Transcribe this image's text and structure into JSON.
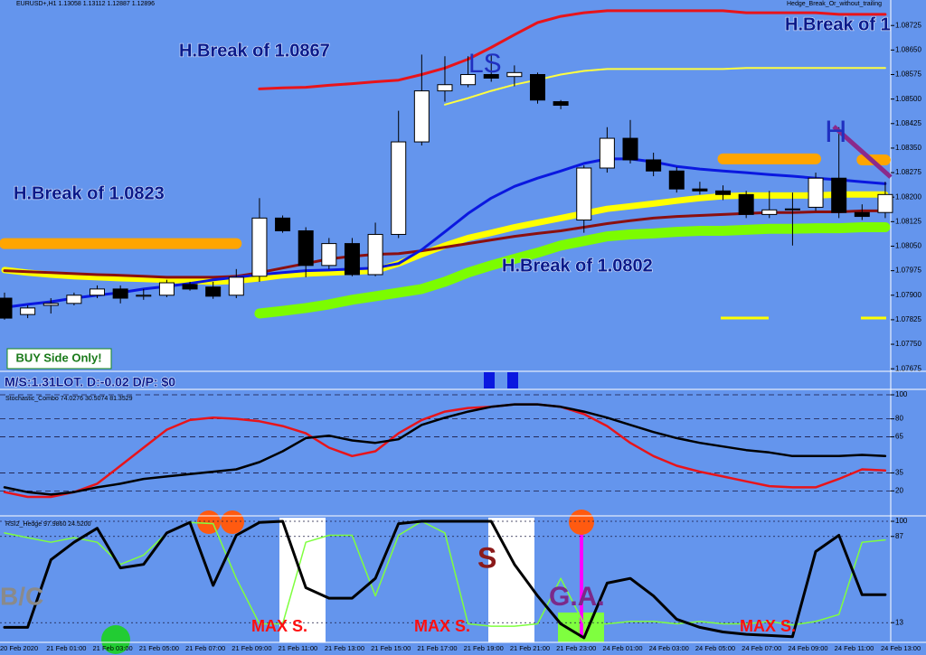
{
  "chart_data": [
    {
      "type": "candlestick",
      "title": "EURUSD+,H1  1.13058 1.13112 1.12887 1.12896",
      "indicator": "Hedge_Break_Or_without_trailing",
      "annotations": [
        "H.Break of 1.0867",
        "H.Break of 1.0823",
        "H.Break of 1.0802",
        "H.Break of 1",
        "LS",
        "H"
      ],
      "button": "BUY Side Only!",
      "status": "M/S:1.31LOT. D:-0.02 D/P: $0",
      "ylim": [
        1.0767,
        1.08803
      ],
      "yticks": [
        1.07675,
        {
          "value": 1.0775,
          "label": "1.07750"
        },
        1.07825,
        {
          "value": 1.079,
          "label": "1.07900"
        },
        1.07975,
        {
          "value": 1.0805,
          "label": "1.08050"
        },
        1.08125,
        {
          "value": 1.082,
          "label": "1.08200"
        },
        1.08275,
        {
          "value": 1.0835,
          "label": "1.08350"
        },
        1.08425,
        {
          "value": 1.085,
          "label": "1.08500"
        },
        1.08575,
        {
          "value": 1.0865,
          "label": "1.08650"
        },
        1.08725
      ],
      "up_color": "#ffffff",
      "down_color": "#000000",
      "open": [
        1.07891,
        1.07841,
        1.07869,
        1.07875,
        1.079,
        1.07919,
        1.07897,
        1.079,
        1.07933,
        1.07925,
        1.079,
        1.07958,
        1.08136,
        1.08097,
        1.07991,
        1.08058,
        1.07963,
        1.08086,
        1.08369,
        1.08525,
        1.08544,
        1.08575,
        1.08569,
        1.08575,
        1.08492,
        1.0813,
        1.08289,
        1.0838,
        1.08314,
        1.0828,
        1.08225,
        1.08219,
        1.08208,
        1.08147,
        1.08164,
        1.08169,
        1.08258,
        1.08153,
        1.08153
      ],
      "high": [
        1.07908,
        1.07869,
        1.07891,
        1.07908,
        1.0793,
        1.0793,
        1.07919,
        1.07947,
        1.07941,
        1.07941,
        1.0798,
        1.08197,
        1.08144,
        1.08108,
        1.08075,
        1.08075,
        1.08122,
        1.08464,
        1.08636,
        1.08631,
        1.08631,
        1.08636,
        1.08603,
        1.08581,
        1.08497,
        1.08297,
        1.08414,
        1.08436,
        1.08336,
        1.08292,
        1.08247,
        1.08236,
        1.08219,
        1.08219,
        1.08214,
        1.08275,
        1.08414,
        1.08178,
        1.08247
      ],
      "low": [
        1.07825,
        1.0783,
        1.07844,
        1.07869,
        1.07891,
        1.07875,
        1.07886,
        1.07894,
        1.07914,
        1.07889,
        1.07891,
        1.07941,
        1.08091,
        1.07955,
        1.0798,
        1.07958,
        1.07958,
        1.08075,
        1.08358,
        1.08492,
        1.08536,
        1.08553,
        1.08539,
        1.08486,
        1.08469,
        1.08091,
        1.08275,
        1.08303,
        1.08264,
        1.08214,
        1.08208,
        1.08191,
        1.08136,
        1.08136,
        1.08052,
        1.08158,
        1.08136,
        1.0813,
        1.08136
      ],
      "close": [
        1.0783,
        1.07861,
        1.07875,
        1.079,
        1.07919,
        1.07891,
        1.079,
        1.07938,
        1.07919,
        1.07897,
        1.07955,
        1.08136,
        1.08097,
        1.07991,
        1.08058,
        1.07963,
        1.08086,
        1.08369,
        1.08525,
        1.08544,
        1.08575,
        1.08564,
        1.08581,
        1.08497,
        1.08481,
        1.08289,
        1.0838,
        1.08314,
        1.0828,
        1.08225,
        1.08219,
        1.08208,
        1.08147,
        1.08161,
        1.08164,
        1.08258,
        1.08153,
        1.08141,
        1.08208
      ],
      "series": [
        {
          "color": "#ffa500",
          "values": [
            1.08058,
            1.08058,
            1.08058,
            1.08058,
            1.08058,
            1.08058,
            1.08058,
            1.08058,
            1.08058,
            1.08058,
            1.08058,
            null,
            null,
            null,
            null,
            null,
            null,
            null,
            null,
            null,
            null,
            null,
            null,
            null,
            null,
            null,
            null,
            null,
            null,
            null,
            null,
            1.08317,
            1.08317,
            1.08317,
            1.08317,
            1.08317,
            null,
            1.08314,
            1.08314
          ]
        },
        {
          "color": "#7cfc00",
          "values": [
            null,
            null,
            null,
            null,
            null,
            null,
            null,
            null,
            null,
            null,
            null,
            1.07844,
            1.07852,
            1.07861,
            1.07872,
            1.07886,
            1.07897,
            1.07908,
            1.07919,
            1.07941,
            1.07969,
            1.07991,
            1.08011,
            1.0803,
            1.08052,
            1.08066,
            1.0808,
            1.08086,
            1.08089,
            1.08094,
            1.08097,
            1.08097,
            1.081,
            1.08103,
            1.08103,
            1.08105,
            1.08105,
            1.08108,
            1.08108
          ]
        },
        {
          "color": "#ffff00",
          "values": [
            1.07977,
            1.07969,
            1.07963,
            1.07958,
            1.07955,
            1.07952,
            1.0795,
            1.07947,
            1.07944,
            1.07941,
            1.07944,
            1.07952,
            1.07961,
            1.07966,
            1.07969,
            1.07972,
            1.07975,
            1.07997,
            1.08025,
            1.08052,
            1.08075,
            1.08091,
            1.08108,
            1.08122,
            1.08136,
            1.0815,
            1.08164,
            1.08172,
            1.0818,
            1.08189,
            1.08197,
            1.08203,
            1.08205,
            1.08205,
            1.08205,
            1.08205,
            1.08208,
            1.08208,
            1.08208
          ]
        },
        {
          "color": "#8b0f0f",
          "values": [
            1.07975,
            1.07972,
            1.07969,
            1.07966,
            1.07963,
            1.07961,
            1.07958,
            1.07955,
            1.07955,
            1.07955,
            1.07958,
            1.07969,
            1.07983,
            1.07997,
            1.08011,
            1.08019,
            1.08025,
            1.08027,
            1.08036,
            1.08047,
            1.08058,
            1.08069,
            1.0808,
            1.08089,
            1.08097,
            1.08108,
            1.08119,
            1.08128,
            1.08136,
            1.08141,
            1.08144,
            1.08147,
            1.0815,
            1.08153,
            1.08153,
            1.08155,
            1.08155,
            1.08158,
            1.08158
          ]
        },
        {
          "color": "#0a18e0",
          "values": [
            1.07863,
            1.07872,
            1.0788,
            1.07891,
            1.079,
            1.07908,
            1.07919,
            1.07927,
            1.07936,
            1.07947,
            1.07955,
            1.07963,
            1.07969,
            1.07975,
            1.07977,
            1.0798,
            1.07983,
            1.07997,
            1.08039,
            1.08094,
            1.0815,
            1.08197,
            1.08233,
            1.08258,
            1.0828,
            1.08303,
            1.08317,
            1.08317,
            1.08308,
            1.08294,
            1.08286,
            1.0828,
            1.08275,
            1.08269,
            1.08264,
            1.08258,
            1.08253,
            1.08247,
            1.08241
          ]
        },
        {
          "color": "#ffff40",
          "values": [
            null,
            null,
            null,
            null,
            null,
            null,
            null,
            null,
            null,
            null,
            null,
            null,
            null,
            null,
            null,
            null,
            null,
            null,
            null,
            1.08483,
            1.08503,
            1.08525,
            1.08544,
            1.08559,
            1.08575,
            1.08586,
            1.08592,
            1.08592,
            1.08592,
            1.08592,
            1.08592,
            1.08592,
            1.08595,
            1.08595,
            1.08595,
            1.08595,
            1.08595,
            1.08595,
            1.08595
          ]
        },
        {
          "color": "#e8141a",
          "values": [
            null,
            null,
            null,
            null,
            null,
            null,
            null,
            null,
            null,
            null,
            null,
            1.08531,
            1.08534,
            1.08536,
            1.08542,
            1.08547,
            1.08553,
            1.08558,
            1.08575,
            1.08595,
            1.08622,
            1.08658,
            1.08697,
            1.08734,
            1.08753,
            1.08764,
            1.0877,
            1.0877,
            1.0877,
            1.0877,
            1.0877,
            1.0877,
            1.08764,
            1.08764,
            1.08764,
            1.08764,
            1.08759,
            1.08759,
            1.08759
          ]
        }
      ]
    },
    {
      "type": "line",
      "title": "Stochastic_Combo 74.0276 30.5074 81.3529",
      "ylim": [
        0,
        100
      ],
      "yticks": [
        100,
        80,
        65,
        35,
        20
      ],
      "grid": true,
      "series": [
        {
          "color": "#e8141a",
          "values": [
            19,
            15,
            15,
            19,
            26,
            41,
            56,
            71,
            79,
            81,
            80,
            78,
            74,
            68,
            56,
            49,
            53,
            68,
            79,
            86,
            89,
            90,
            92,
            92,
            90,
            84,
            74,
            60,
            49,
            41,
            36,
            32,
            28,
            24,
            23,
            23,
            30,
            38,
            37
          ]
        },
        {
          "color": "#000000",
          "values": [
            23,
            19,
            17,
            19,
            23,
            26,
            30,
            32,
            34,
            36,
            38,
            44,
            53,
            64,
            66,
            62,
            60,
            63,
            75,
            81,
            86,
            90,
            92,
            92,
            90,
            86,
            81,
            75,
            69,
            64,
            60,
            57,
            54,
            52,
            49,
            49,
            49,
            50,
            49
          ]
        }
      ]
    },
    {
      "type": "line",
      "title": "RSI2_Hedge 97.9860 24.5200",
      "annotations": [
        "B/C",
        "MAX S.",
        "MAX S.",
        "MAX S.",
        "S",
        "G.A."
      ],
      "ylim": [
        0,
        100
      ],
      "yticks": [
        100,
        87,
        13
      ],
      "grid": true,
      "categories": [
        "20 Feb 2020",
        null,
        "21 Feb 01:00",
        null,
        "21 Feb 03:00",
        null,
        "21 Feb 05:00",
        null,
        "21 Feb 07:00",
        null,
        "21 Feb 09:00",
        null,
        "21 Feb 11:00",
        null,
        "21 Feb 13:00",
        null,
        "21 Feb 15:00",
        null,
        "21 Feb 17:00",
        null,
        "21 Feb 19:00",
        null,
        "21 Feb 21:00",
        null,
        "21 Feb 23:00",
        null,
        "24 Feb 01:00",
        null,
        "24 Feb 03:00",
        null,
        "24 Feb 05:00",
        null,
        "24 Feb 07:00",
        null,
        "24 Feb 09:00",
        null,
        "24 Feb 11:00",
        null,
        "24 Feb 13:00"
      ],
      "series": [
        {
          "color": "#7fff3f",
          "values": [
            90,
            86,
            82,
            86,
            82,
            63,
            71,
            90,
            99,
            98,
            51,
            12,
            12,
            82,
            88,
            88,
            36,
            88,
            100,
            90,
            12,
            10,
            10,
            12,
            51,
            12,
            12,
            14,
            14,
            12,
            14,
            12,
            12,
            14,
            11,
            14,
            20,
            82,
            84
          ]
        },
        {
          "color": "#000000",
          "values": [
            9,
            9,
            67,
            82,
            94,
            60,
            63,
            90,
            99,
            45,
            88,
            99,
            100,
            43,
            34,
            34,
            51,
            98,
            100,
            100,
            100,
            100,
            63,
            36,
            12,
            0,
            47,
            51,
            36,
            16,
            9,
            5,
            3,
            2,
            1,
            74,
            88,
            37,
            37
          ]
        }
      ]
    }
  ]
}
